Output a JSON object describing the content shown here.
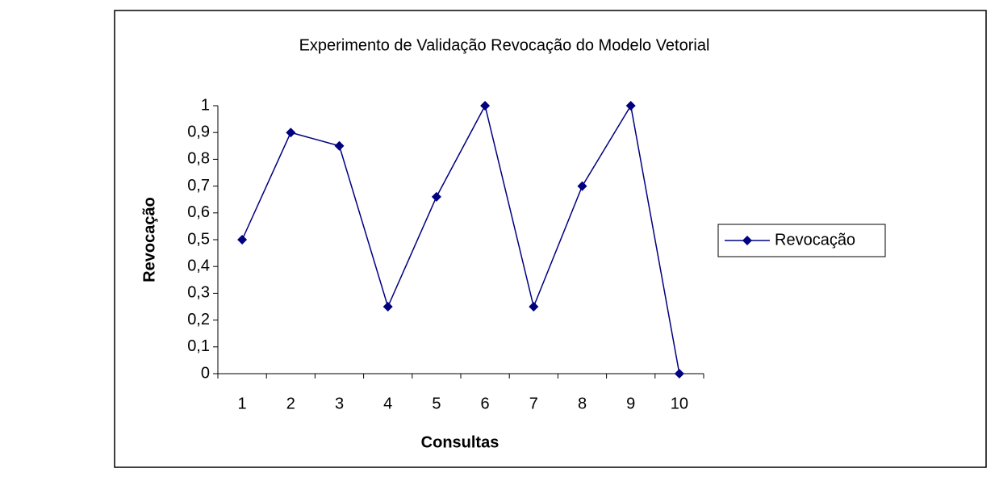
{
  "chart_data": {
    "type": "line",
    "title": "Experimento de Validação Revocação do Modelo Vetorial",
    "xlabel": "Consultas",
    "ylabel": "Revocação",
    "categories": [
      "1",
      "2",
      "3",
      "4",
      "5",
      "6",
      "7",
      "8",
      "9",
      "10"
    ],
    "series": [
      {
        "name": "Revocação",
        "color": "#000080",
        "values": [
          0.5,
          0.9,
          0.85,
          0.25,
          0.66,
          1,
          0.25,
          0.7,
          1,
          0
        ]
      }
    ],
    "ylim": [
      0,
      1
    ],
    "yticks": [
      0,
      {
        "value": 0.1,
        "label": "0,1"
      },
      {
        "value": 0.2,
        "label": "0,2"
      },
      {
        "value": 0.3,
        "label": "0,3"
      },
      {
        "value": 0.4,
        "label": "0,4"
      },
      {
        "value": 0.5,
        "label": "0,5"
      },
      {
        "value": 0.6,
        "label": "0,6"
      },
      {
        "value": 0.7,
        "label": "0,7"
      },
      {
        "value": 0.8,
        "label": "0,8"
      },
      {
        "value": 0.9,
        "label": "0,9"
      },
      1
    ],
    "grid": false,
    "legend": "right"
  }
}
